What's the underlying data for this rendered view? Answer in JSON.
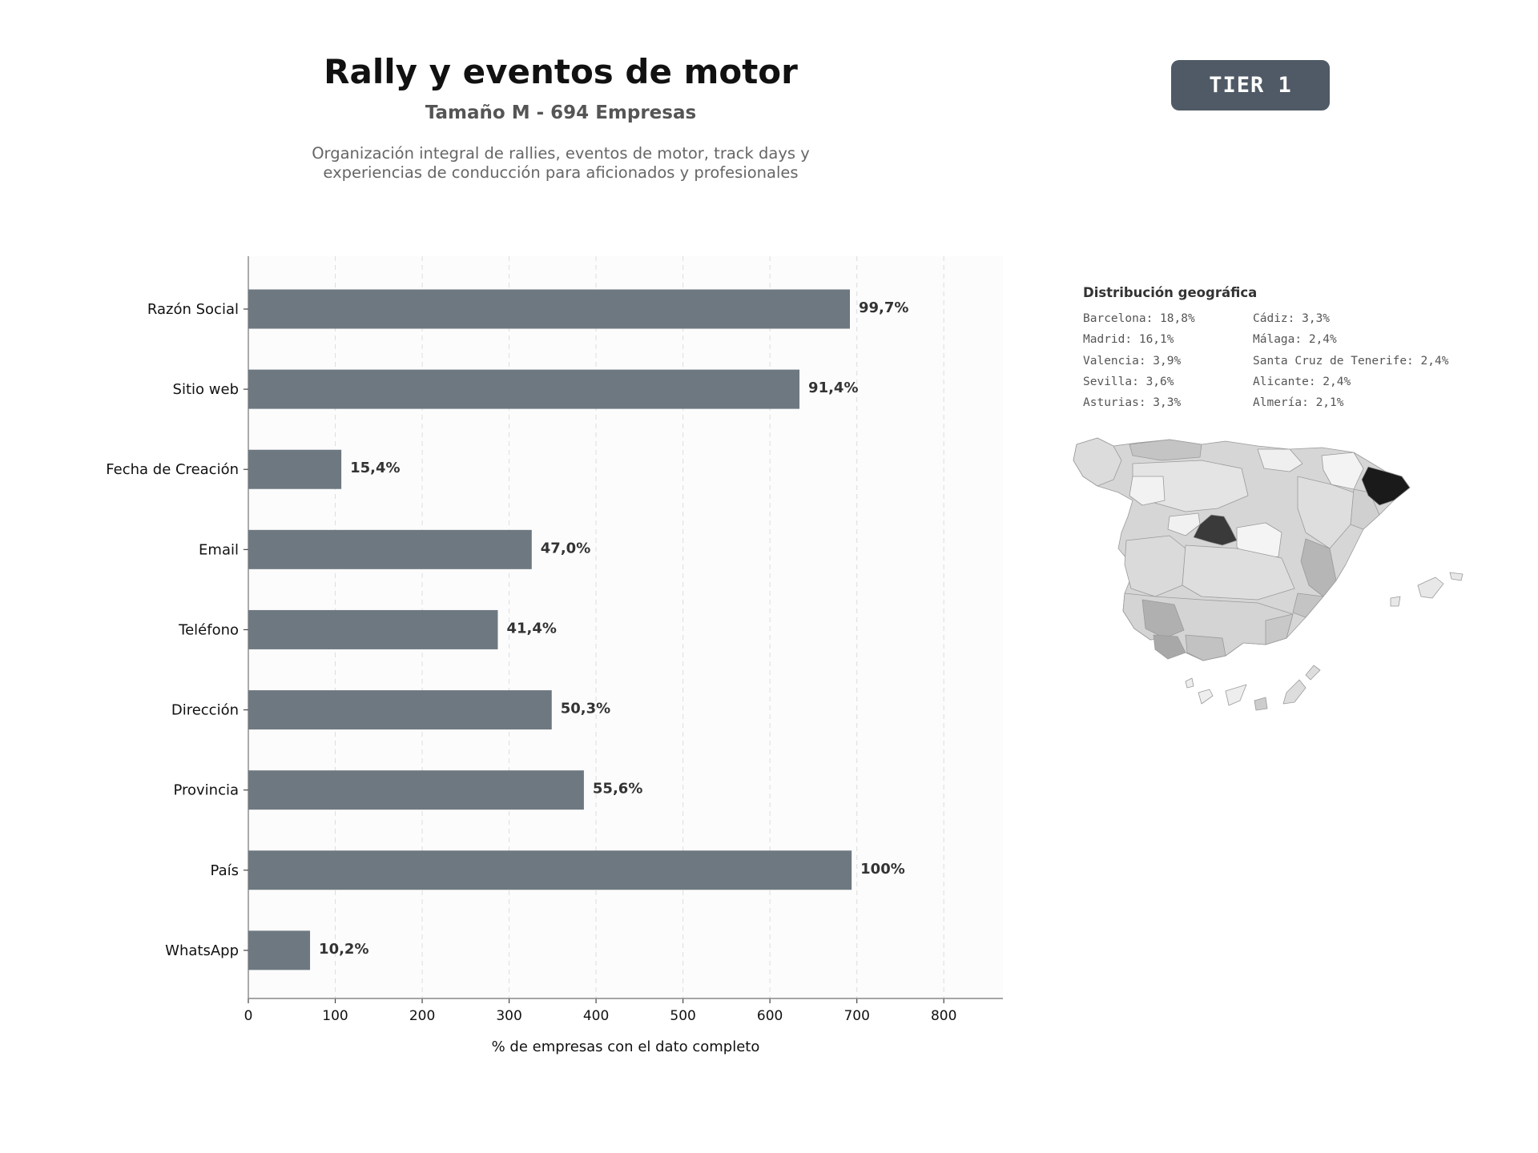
{
  "header": {
    "title": "Rally y eventos de motor",
    "subtitle": "Tamaño M - 694 Empresas",
    "description_line1": "Organización integral de rallies, eventos de motor, track days y",
    "description_line2": "experiencias de conducción para aficionados y profesionales"
  },
  "badge": {
    "label": "TIER 1"
  },
  "colors": {
    "bar": "#6e7881",
    "badge": "#4f5a66",
    "plot_bg": "#fcfcfc",
    "map_dark": "#1a1a1a"
  },
  "chart_data": {
    "type": "bar",
    "orientation": "horizontal",
    "categories": [
      "Razón Social",
      "Sitio web",
      "Fecha de Creación",
      "Email",
      "Teléfono",
      "Dirección",
      "Provincia",
      "País",
      "WhatsApp"
    ],
    "values": [
      692,
      634,
      107,
      326,
      287,
      349,
      386,
      694,
      71
    ],
    "value_labels": [
      "99,7%",
      "91,4%",
      "15,4%",
      "47,0%",
      "41,4%",
      "50,3%",
      "55,6%",
      "100%",
      "10,2%"
    ],
    "xlabel": "% de empresas con el dato completo",
    "xlim": [
      0,
      868
    ],
    "xticks": [
      0,
      100,
      200,
      300,
      400,
      500,
      600,
      700,
      800
    ],
    "grid": "vertical dashed"
  },
  "geo": {
    "title": "Distribución geográfica",
    "col1": [
      "Barcelona: 18,8%",
      "Madrid: 16,1%",
      "Valencia: 3,9%",
      "Sevilla: 3,6%",
      "Asturias: 3,3%"
    ],
    "col2": [
      "Cádiz: 3,3%",
      "Málaga: 2,4%",
      "Santa Cruz de Tenerife: 2,4%",
      "Alicante: 2,4%",
      "Almería: 2,1%"
    ]
  }
}
